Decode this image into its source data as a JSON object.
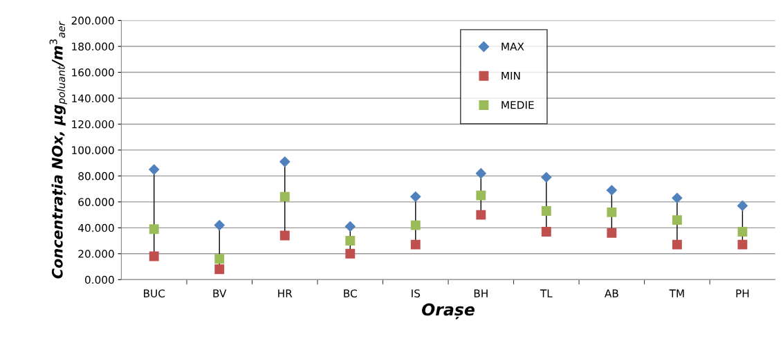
{
  "chart_data": {
    "type": "scatter",
    "xlabel": "Orașe",
    "ylabel": "Concentrația NOx, μg$_{poluant}$/m$^{3}$$_{aer}$",
    "categories": [
      "BUC",
      "BV",
      "HR",
      "BC",
      "IS",
      "BH",
      "TL",
      "AB",
      "TM",
      "PH"
    ],
    "series": [
      {
        "name": "MAX",
        "color": "#4f81bd",
        "marker": "diamond",
        "values": [
          85,
          42,
          91,
          41,
          64,
          82,
          79,
          69,
          63,
          57
        ]
      },
      {
        "name": "MIN",
        "color": "#c0504d",
        "marker": "square",
        "values": [
          18,
          8,
          34,
          20,
          27,
          50,
          37,
          36,
          27,
          27
        ]
      },
      {
        "name": "MEDIE",
        "color": "#9bbb59",
        "marker": "square",
        "values": [
          39,
          16,
          64,
          30,
          42,
          65,
          53,
          52,
          46,
          37
        ]
      }
    ],
    "ylim": [
      0,
      200
    ],
    "yticks": [
      {
        "value": 0,
        "label": "0.000"
      },
      {
        "value": 20,
        "label": "20.000"
      },
      {
        "value": 40,
        "label": "40.000"
      },
      {
        "value": 60,
        "label": "60.000"
      },
      {
        "value": 80,
        "label": "80.000"
      },
      {
        "value": 100,
        "label": "100.000"
      },
      {
        "value": 120,
        "label": "120.000"
      },
      {
        "value": 140,
        "label": "140.000"
      },
      {
        "value": 160,
        "label": "160.000"
      },
      {
        "value": 180,
        "label": "180.000"
      },
      {
        "value": 200,
        "label": "200.000"
      }
    ],
    "grid": "y",
    "legend": "top"
  }
}
